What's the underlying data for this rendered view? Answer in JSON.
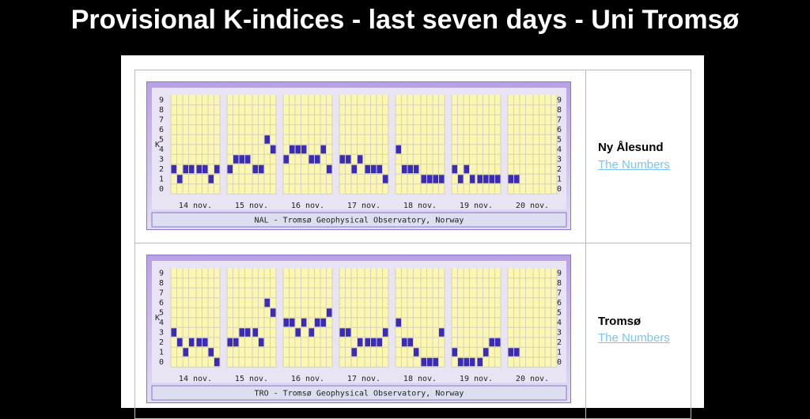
{
  "title": "Provisional K-indices - last seven days - Uni Tromsø",
  "stations": [
    {
      "name": "Ny Ålesund",
      "link": "The Numbers"
    },
    {
      "name": "Tromsø",
      "link": "The Numbers"
    }
  ],
  "chart_data": [
    {
      "type": "bar",
      "ylabel": "K",
      "caption": "NAL - Tromsø Geophysical Observatory, Norway",
      "color": "#3a2cb4",
      "ylim": [
        0,
        9
      ],
      "yticks": [
        0,
        1,
        2,
        3,
        4,
        5,
        6,
        7,
        8,
        9
      ],
      "grid": true,
      "days": [
        {
          "label": "14 nov.",
          "values": [
            2,
            1,
            2,
            2,
            2,
            2,
            1,
            2
          ]
        },
        {
          "label": "15 nov.",
          "values": [
            2,
            3,
            3,
            3,
            2,
            2,
            5,
            4
          ]
        },
        {
          "label": "16 nov.",
          "values": [
            3,
            4,
            4,
            4,
            3,
            3,
            4,
            2
          ]
        },
        {
          "label": "17 nov.",
          "values": [
            3,
            3,
            2,
            3,
            2,
            2,
            2,
            1
          ]
        },
        {
          "label": "18 nov.",
          "values": [
            4,
            2,
            2,
            2,
            1,
            1,
            1,
            1
          ]
        },
        {
          "label": "19 nov.",
          "values": [
            2,
            1,
            2,
            1,
            1,
            1,
            1,
            1
          ]
        },
        {
          "label": "20 nov.",
          "values": [
            1,
            1,
            null,
            null,
            null,
            null,
            null,
            null
          ]
        }
      ]
    },
    {
      "type": "bar",
      "ylabel": "K",
      "caption": "TRO - Tromsø Geophysical Observatory, Norway",
      "color": "#3a2cb4",
      "ylim": [
        0,
        9
      ],
      "yticks": [
        0,
        1,
        2,
        3,
        4,
        5,
        6,
        7,
        8,
        9
      ],
      "grid": true,
      "days": [
        {
          "label": "14 nov.",
          "values": [
            3,
            2,
            1,
            2,
            2,
            2,
            1,
            0
          ]
        },
        {
          "label": "15 nov.",
          "values": [
            2,
            2,
            3,
            3,
            3,
            2,
            6,
            5
          ]
        },
        {
          "label": "16 nov.",
          "values": [
            4,
            4,
            3,
            4,
            3,
            4,
            4,
            5
          ]
        },
        {
          "label": "17 nov.",
          "values": [
            3,
            3,
            1,
            2,
            2,
            2,
            2,
            3
          ]
        },
        {
          "label": "18 nov.",
          "values": [
            4,
            2,
            2,
            1,
            0,
            0,
            0,
            3
          ]
        },
        {
          "label": "19 nov.",
          "values": [
            1,
            0,
            0,
            0,
            0,
            1,
            2,
            2
          ]
        },
        {
          "label": "20 nov.",
          "values": [
            1,
            1,
            null,
            null,
            null,
            null,
            null,
            null
          ]
        }
      ]
    }
  ]
}
